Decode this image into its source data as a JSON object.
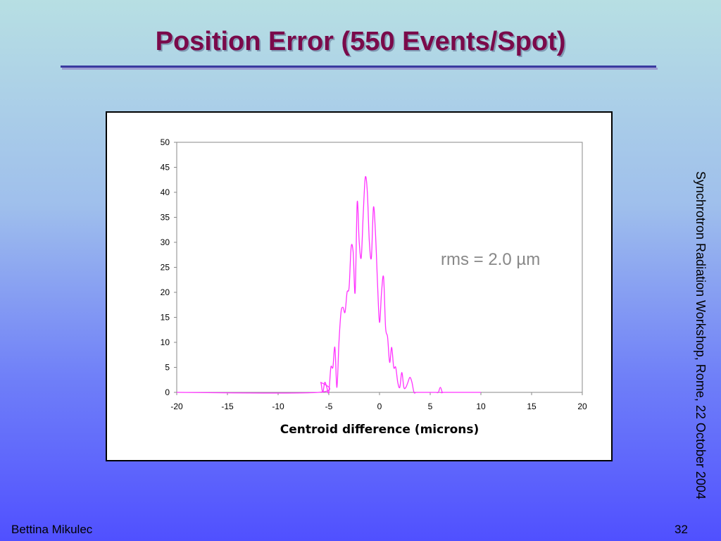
{
  "slide": {
    "title": "Position Error (550 Events/Spot)",
    "side_text": "Synchrotron Radiation Workshop, Rome, 22 October 2004",
    "author": "Bettina Mikulec",
    "page_number": "32"
  },
  "chart_data": {
    "type": "line",
    "title": "",
    "xlabel": "Centroid difference (microns)",
    "ylabel": "",
    "xlim": [
      -20,
      20
    ],
    "ylim": [
      0,
      50
    ],
    "x_ticks": [
      -20,
      -15,
      -10,
      -5,
      0,
      5,
      10,
      15,
      20
    ],
    "y_ticks": [
      0,
      5,
      10,
      15,
      20,
      25,
      30,
      35,
      40,
      45,
      50
    ],
    "annotation": "rms = 2.0 µm",
    "line_color": "#ff33ff",
    "grid": false,
    "series": [
      {
        "x": [
          -20,
          -6.0,
          -5.8,
          -5.6,
          -5.4,
          -5.2,
          -5.0,
          -4.8,
          -4.6,
          -4.4,
          -4.2,
          -4.0,
          -3.8,
          -3.6,
          -3.4,
          -3.2,
          -3.0,
          -2.8,
          -2.6,
          -2.4,
          -2.2,
          -2.0,
          -1.8,
          -1.6,
          -1.4,
          -1.2,
          -1.0,
          -0.8,
          -0.6,
          -0.4,
          -0.2,
          0.0,
          0.2,
          0.4,
          0.6,
          0.8,
          1.0,
          1.2,
          1.4,
          1.6,
          1.8,
          2.0,
          2.2,
          2.4,
          2.6,
          2.8,
          3.0,
          3.2,
          3.4,
          3.6,
          3.8,
          4.0,
          4.2,
          4.4,
          4.6,
          4.8,
          5.0,
          5.2,
          5.4,
          5.6,
          5.8,
          6.0,
          6.2,
          6.4,
          10
        ],
        "y": [
          0,
          0,
          2,
          0,
          2,
          1,
          0,
          5,
          5,
          9,
          1,
          10,
          16,
          17,
          16,
          20,
          21,
          29,
          28,
          20,
          38,
          30,
          27,
          36,
          43,
          40,
          30,
          27,
          37,
          32,
          22,
          14,
          20,
          23,
          13,
          11,
          6,
          9,
          5,
          5,
          2,
          1,
          4,
          1,
          1,
          2,
          3,
          2,
          0,
          0,
          0,
          0,
          0,
          0,
          0,
          0,
          0,
          0,
          0,
          0,
          0,
          1,
          0,
          0,
          0
        ]
      }
    ]
  }
}
